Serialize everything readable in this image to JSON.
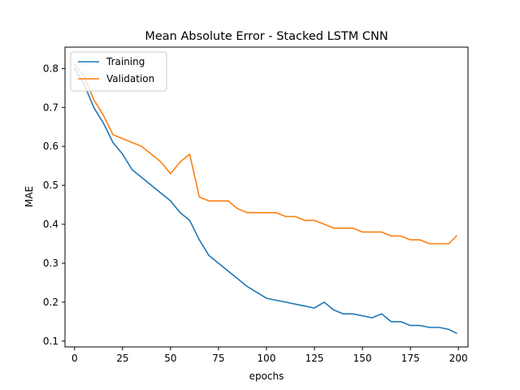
{
  "chart_data": {
    "type": "line",
    "title": "Mean Absolute Error - Stacked LSTM CNN",
    "xlabel": "epochs",
    "ylabel": "MAE",
    "xlim": [
      -5,
      205
    ],
    "ylim": [
      0.085,
      0.855
    ],
    "xticks": [
      0,
      25,
      50,
      75,
      100,
      125,
      150,
      175,
      200
    ],
    "yticks": [
      0.1,
      0.2,
      0.3,
      0.4,
      0.5,
      0.6,
      0.7,
      0.8
    ],
    "grid": false,
    "legend_position": "top-left",
    "x": [
      0,
      5,
      10,
      15,
      20,
      25,
      30,
      35,
      40,
      45,
      50,
      55,
      60,
      65,
      70,
      75,
      80,
      85,
      90,
      95,
      100,
      105,
      110,
      115,
      120,
      125,
      130,
      135,
      140,
      145,
      150,
      155,
      160,
      165,
      170,
      175,
      180,
      185,
      190,
      195,
      199
    ],
    "series": [
      {
        "name": "Training",
        "color": "#1f77b4",
        "values": [
          0.8,
          0.76,
          0.7,
          0.66,
          0.61,
          0.58,
          0.54,
          0.52,
          0.5,
          0.48,
          0.46,
          0.43,
          0.41,
          0.36,
          0.32,
          0.3,
          0.28,
          0.26,
          0.24,
          0.225,
          0.21,
          0.205,
          0.2,
          0.195,
          0.19,
          0.185,
          0.2,
          0.18,
          0.17,
          0.17,
          0.165,
          0.16,
          0.17,
          0.15,
          0.15,
          0.14,
          0.14,
          0.135,
          0.135,
          0.13,
          0.12
        ]
      },
      {
        "name": "Validation",
        "color": "#ff7f0e",
        "values": [
          0.81,
          0.78,
          0.72,
          0.68,
          0.63,
          0.62,
          0.61,
          0.6,
          0.58,
          0.56,
          0.53,
          0.56,
          0.58,
          0.47,
          0.46,
          0.46,
          0.46,
          0.44,
          0.43,
          0.43,
          0.43,
          0.43,
          0.42,
          0.42,
          0.41,
          0.41,
          0.4,
          0.39,
          0.39,
          0.39,
          0.38,
          0.38,
          0.38,
          0.37,
          0.37,
          0.36,
          0.36,
          0.35,
          0.35,
          0.35,
          0.37
        ]
      }
    ]
  }
}
